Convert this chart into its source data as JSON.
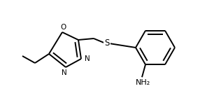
{
  "background_color": "#ffffff",
  "line_color": "#000000",
  "line_width": 1.4,
  "text_color": "#000000",
  "label_S": "S",
  "label_O": "O",
  "label_N1": "N",
  "label_N2": "N",
  "label_NH2": "NH₂",
  "font_size_atom": 7.5
}
